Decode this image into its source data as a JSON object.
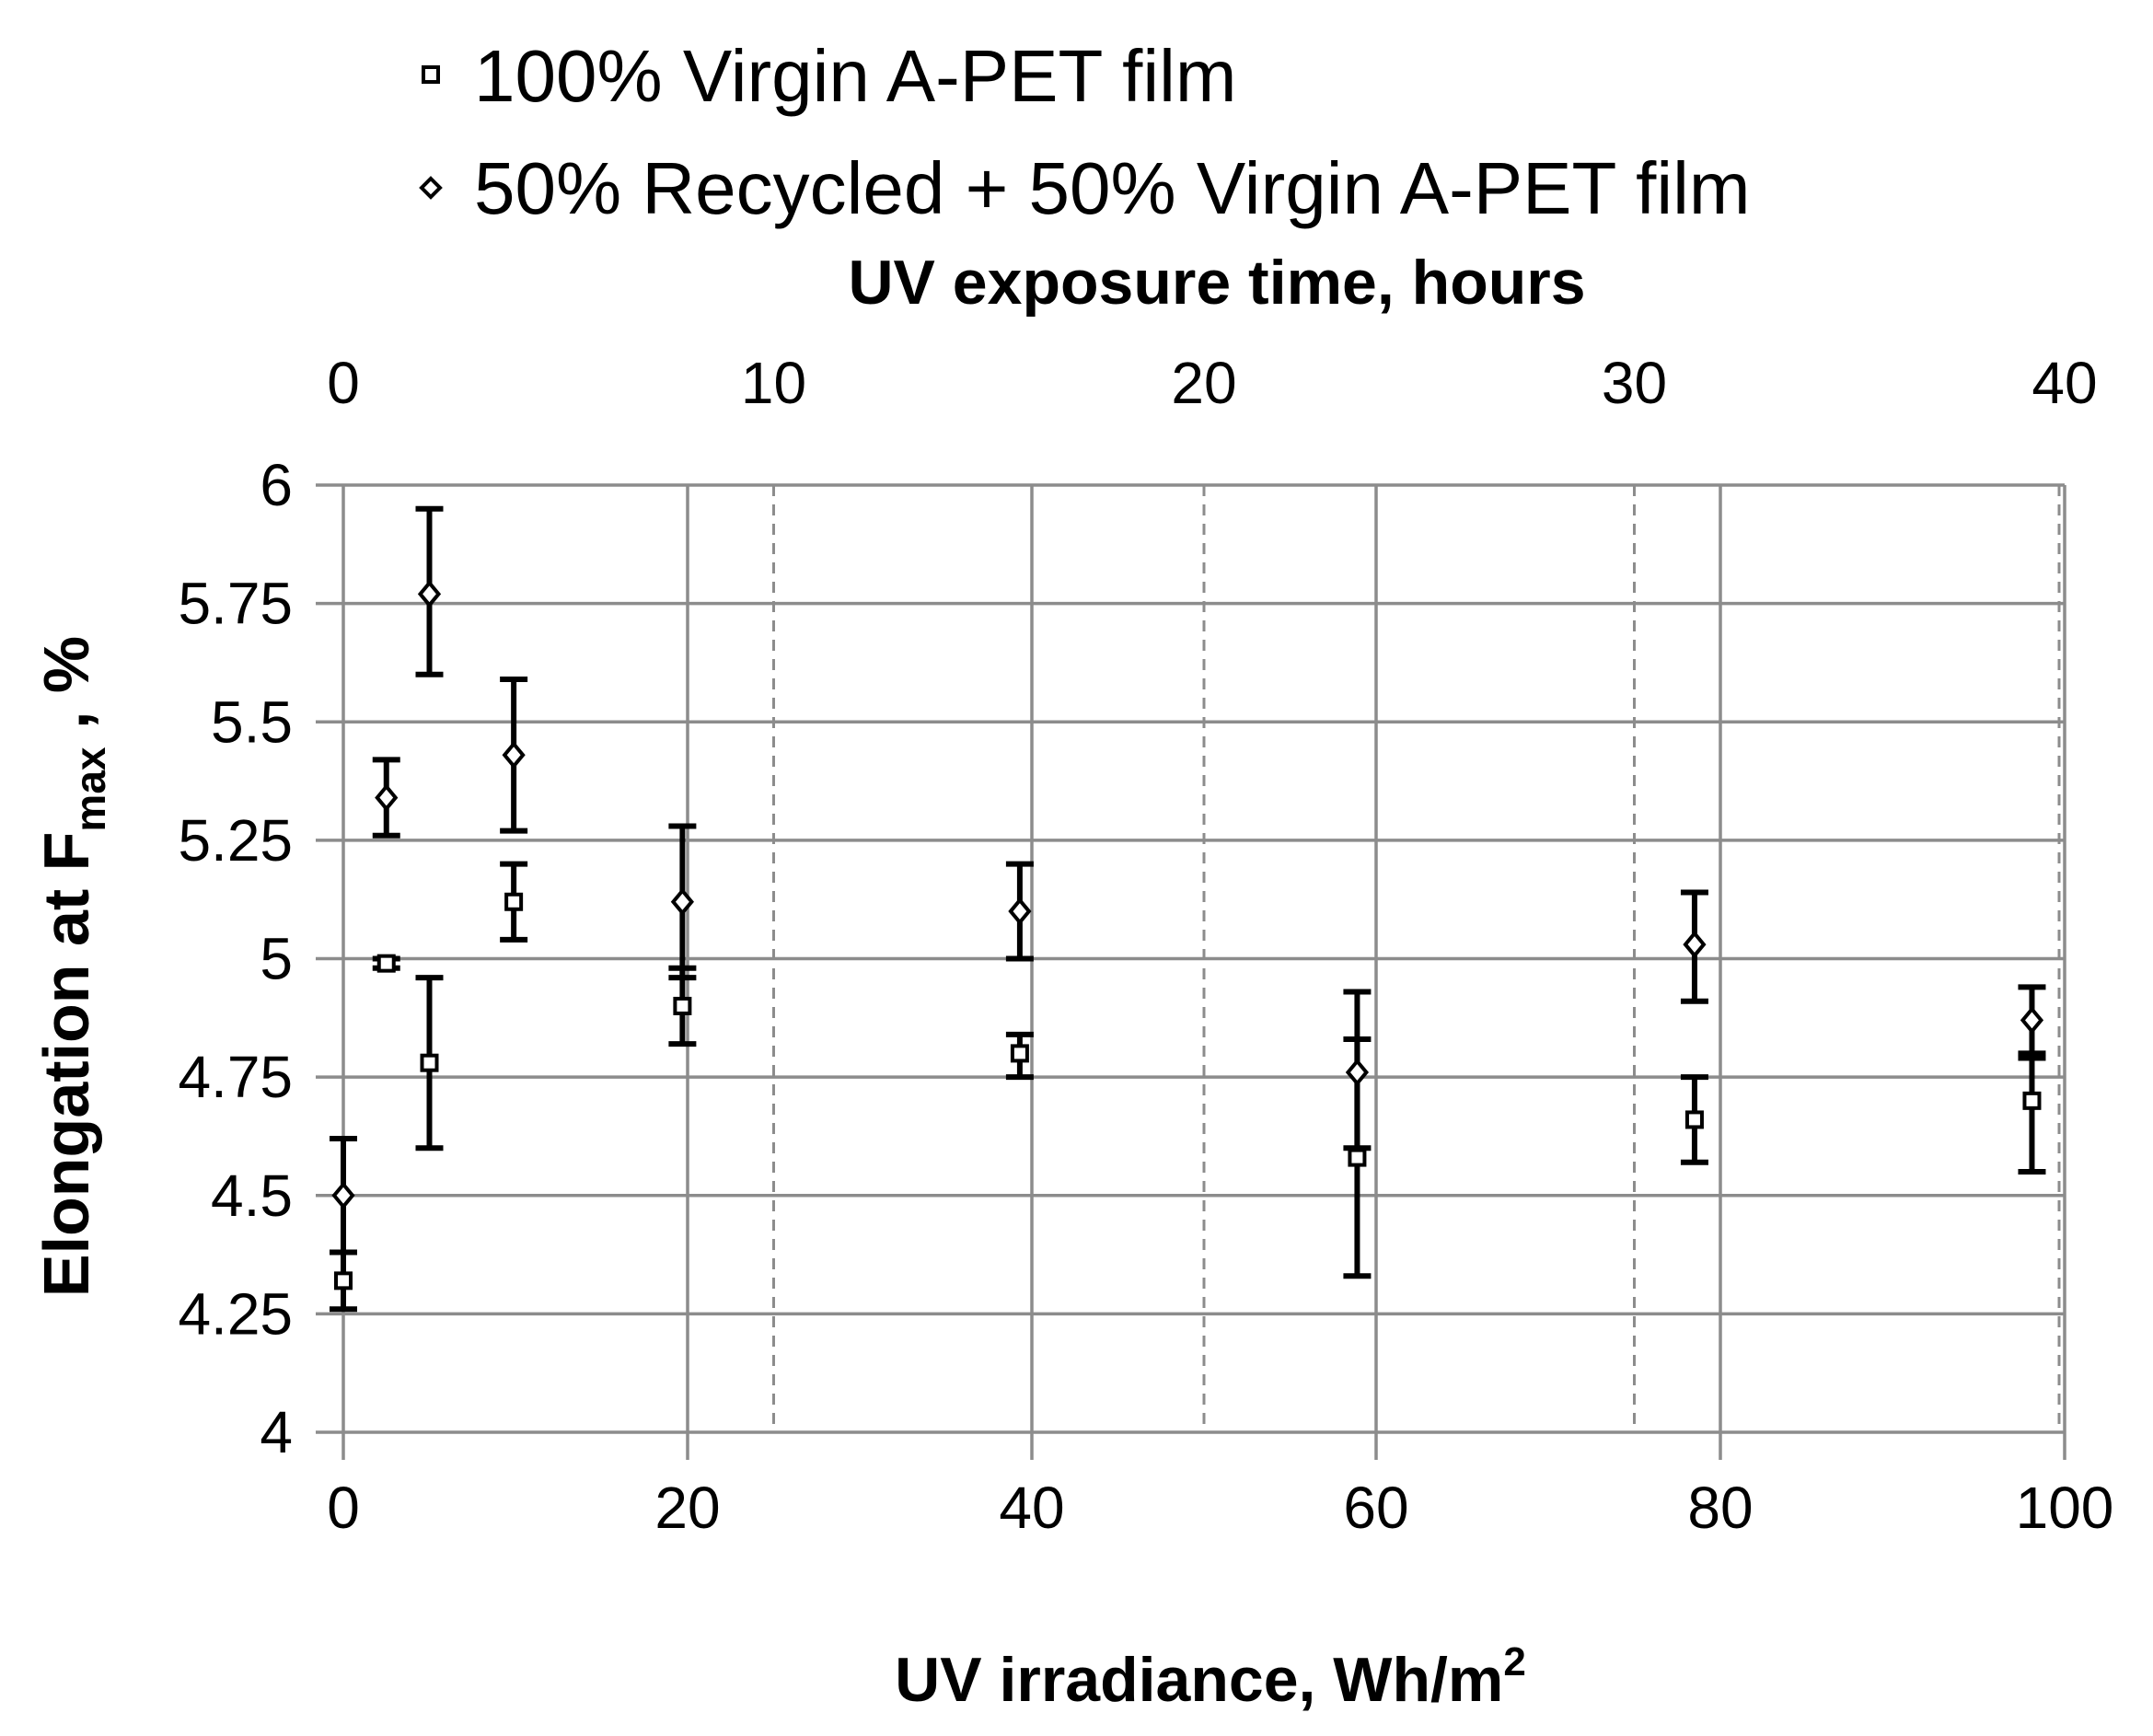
{
  "chart_data": {
    "type": "scatter",
    "title": "",
    "xlabel": "UV irradiance, Wh/m",
    "xlabel_sup": "2",
    "x2label": "UV exposure time, hours",
    "ylabel_main": "Elongation at F",
    "ylabel_sub": "max",
    "ylabel_tail": " , %",
    "xlim": [
      0,
      100
    ],
    "x2lim": [
      0,
      40
    ],
    "ylim": [
      4,
      6
    ],
    "x_ticks": [
      0,
      20,
      40,
      60,
      80,
      100
    ],
    "x2_ticks": [
      0,
      10,
      20,
      30,
      40
    ],
    "y_ticks": [
      4,
      4.25,
      4.5,
      4.75,
      5,
      5.25,
      5.5,
      5.75,
      6
    ],
    "x_tick_labels": [
      "0",
      "20",
      "40",
      "60",
      "80",
      "100"
    ],
    "x2_tick_labels": [
      "0",
      "10",
      "20",
      "30",
      "40"
    ],
    "y_tick_labels": [
      "4",
      "4.25",
      "4.5",
      "4.75",
      "5",
      "5.25",
      "5.5",
      "5.75",
      "6"
    ],
    "grid": "solid horizontal and vertical at primary ticks; dashed vertical at secondary ticks",
    "legend_position": "top-left",
    "series": [
      {
        "name": "100% Virgin A-PET film",
        "marker": "square",
        "x": [
          0,
          2.5,
          5,
          9.9,
          19.7,
          39.3,
          58.9,
          78.5,
          98.1
        ],
        "y": [
          4.32,
          4.99,
          4.78,
          5.12,
          4.9,
          4.8,
          4.58,
          4.66,
          4.7
        ],
        "err_low": [
          4.26,
          4.98,
          4.6,
          5.04,
          4.82,
          4.75,
          4.33,
          4.57,
          4.55
        ],
        "err_high": [
          4.38,
          5.0,
          4.96,
          5.2,
          4.98,
          4.84,
          4.83,
          4.75,
          4.8
        ]
      },
      {
        "name": "50% Recycled + 50% Virgin A-PET film",
        "marker": "diamond",
        "x": [
          0,
          2.5,
          5,
          9.9,
          19.7,
          39.3,
          58.9,
          78.5,
          98.1
        ],
        "y": [
          4.5,
          5.34,
          5.77,
          5.43,
          5.12,
          5.1,
          4.76,
          5.03,
          4.87
        ],
        "err_low": [
          4.38,
          5.26,
          5.6,
          5.27,
          4.96,
          5.0,
          4.6,
          4.91,
          4.79
        ],
        "err_high": [
          4.62,
          5.42,
          5.95,
          5.59,
          5.28,
          5.2,
          4.93,
          5.14,
          4.94
        ]
      }
    ]
  },
  "colors": {
    "grid": "#8c8c8c",
    "axis": "#8c8c8c",
    "ink": "#000000",
    "marker_fill": "#ffffff"
  }
}
